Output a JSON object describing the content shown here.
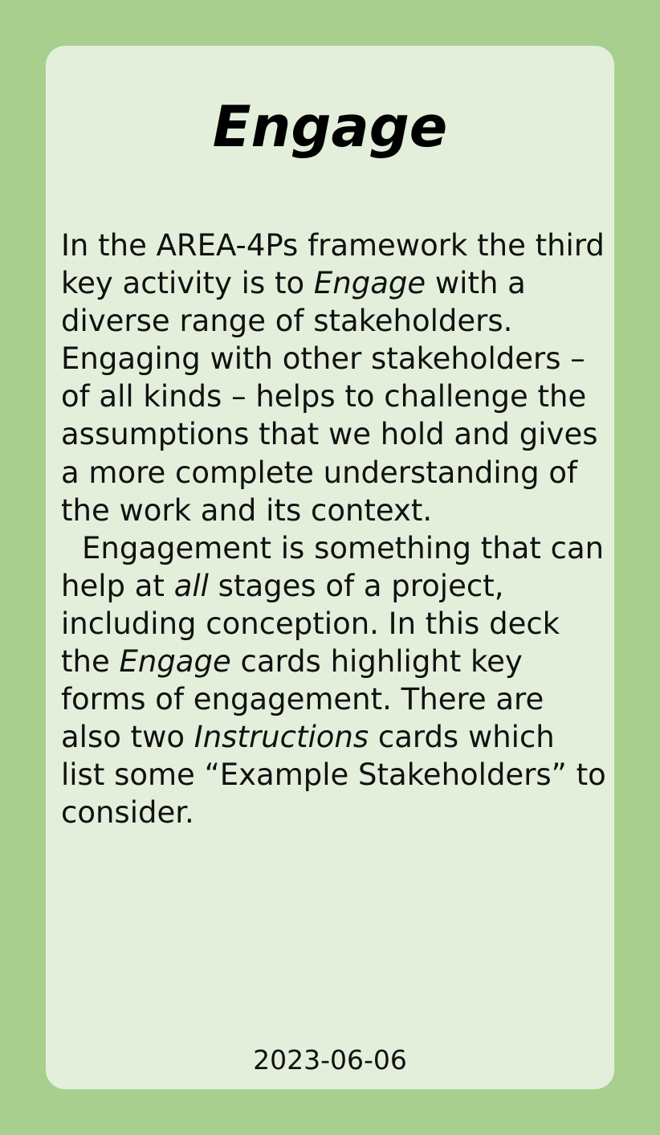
{
  "card": {
    "title": "Engage",
    "paragraph1": {
      "part1": "In the AREA-4Ps framework the third key activity is to ",
      "em1": "Engage",
      "part2": " with a diverse range of stakeholders. Engaging with other stakeholders – of all kinds – helps to challenge the assumptions that we hold and gives a more complete understanding of the work and its context."
    },
    "paragraph2": {
      "part1": "Engagement is something that can help at ",
      "em1": "all",
      "part2": " stages of a project, including conception. In this deck the ",
      "em2": "Engage",
      "part3": " cards highlight key forms of engagement. There are also two ",
      "em3": "Instructions",
      "part4": " cards which list some “Example Stakeholders” to consider."
    },
    "date": "2023-06-06"
  },
  "colors": {
    "background": "#a9cf8f",
    "card": "#e3efdb",
    "text": "#111111"
  }
}
